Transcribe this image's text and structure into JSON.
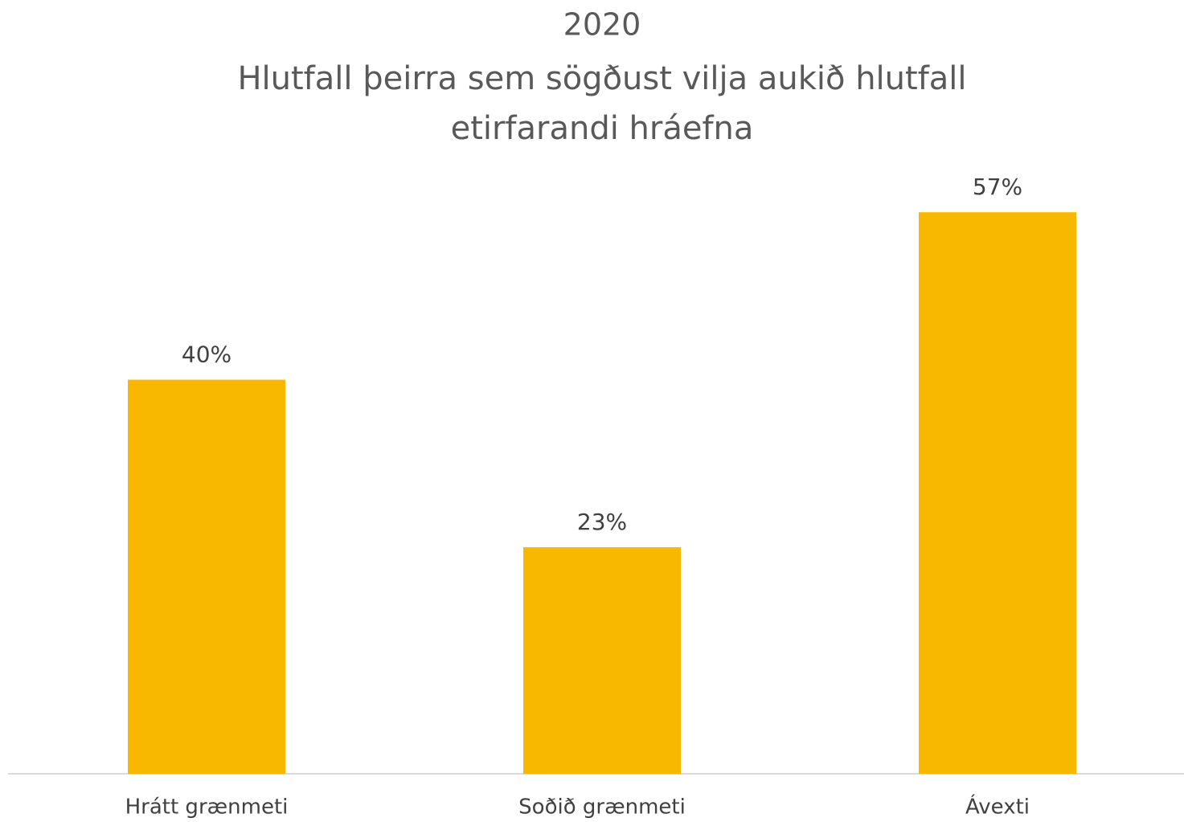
{
  "chart_data": {
    "type": "bar",
    "title": "2020",
    "subtitle": [
      "Hlutfall þeirra sem sögðust vilja aukið hlutfall",
      "etirfarandi hráefna"
    ],
    "categories": [
      "Hrátt grænmeti",
      "Soðið grænmeti",
      "Ávexti"
    ],
    "values": [
      40,
      23,
      57
    ],
    "value_labels": [
      "40%",
      "23%",
      "57%"
    ],
    "color": "#f9b800"
  }
}
